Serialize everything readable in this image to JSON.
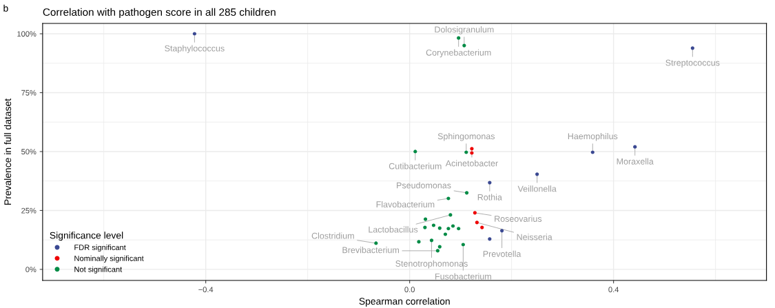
{
  "chart_data": {
    "type": "scatter",
    "title": "Correlation with pathogen score in all 285 children",
    "xlabel": "Spearman correlation",
    "ylabel": "Prevalence in full dataset",
    "legend_title": "Significance level",
    "legend": "bottom left",
    "grid": true,
    "marker": "circle",
    "xlim": [
      -0.72,
      0.7
    ],
    "ylim": [
      -4.7,
      104.4
    ],
    "xticks": [
      {
        "value": -0.4,
        "label": "−0.4"
      },
      {
        "value": 0.0,
        "label": "0.0"
      },
      {
        "value": 0.4,
        "label": "0.4"
      }
    ],
    "yticks": [
      {
        "value": 0,
        "label": "0%"
      },
      {
        "value": 25,
        "label": "25%"
      },
      {
        "value": 50,
        "label": "50%"
      },
      {
        "value": 75,
        "label": "75%"
      },
      {
        "value": 100,
        "label": "100%"
      }
    ],
    "series": [
      {
        "name": "FDR significant",
        "color": "#3b4992",
        "x": [
          -0.422,
          0.555,
          0.442,
          0.359,
          0.25,
          0.157,
          0.181,
          0.157
        ],
        "values": [
          100,
          93.9,
          52.0,
          49.7,
          40.4,
          36.8,
          16.4,
          12.9
        ]
      },
      {
        "name": "Nominally significant",
        "color": "#ee0000",
        "x": [
          0.122,
          0.122,
          0.128,
          0.132,
          0.142
        ],
        "values": [
          51.2,
          49.4,
          24.0,
          19.9,
          17.8
        ]
      },
      {
        "name": "Not significant",
        "color": "#008b45",
        "x": [
          0.096,
          0.107,
          0.011,
          0.111,
          0.112,
          0.076,
          0.08,
          0.031,
          0.047,
          0.085,
          0.03,
          0.059,
          0.076,
          0.096,
          0.07,
          0.043,
          0.018,
          0.105,
          0.059,
          0.055,
          -0.066
        ],
        "values": [
          98.2,
          95.0,
          50.0,
          49.7,
          32.5,
          30.1,
          23.1,
          21.3,
          18.7,
          18.4,
          17.8,
          17.5,
          17.3,
          17.3,
          14.9,
          12.3,
          11.7,
          10.5,
          9.6,
          7.9,
          11.1
        ]
      }
    ],
    "annotations": [
      "b",
      {
        "text": "Staphylococcus",
        "x": -0.422,
        "y": 100
      },
      {
        "text": "Corynebacterium",
        "x": 0.096,
        "y": 98.2
      },
      {
        "text": "Dolosigranulum",
        "x": 0.107,
        "y": 95.0
      },
      {
        "text": "Streptococcus",
        "x": 0.555,
        "y": 93.9
      },
      {
        "text": "Moraxella",
        "x": 0.442,
        "y": 52.0
      },
      {
        "text": "Haemophilus",
        "x": 0.359,
        "y": 49.7
      },
      {
        "text": "Veillonella",
        "x": 0.25,
        "y": 40.4
      },
      {
        "text": "Rothia",
        "x": 0.157,
        "y": 36.8
      },
      {
        "text": "Cutibacterium",
        "x": 0.011,
        "y": 50.0
      },
      {
        "text": "Acinetobacter",
        "x": 0.122,
        "y": 51.2
      },
      {
        "text": "Sphingomonas",
        "x": 0.111,
        "y": 49.7
      },
      {
        "text": "Pseudomonas",
        "x": 0.112,
        "y": 32.5
      },
      {
        "text": "Flavobacterium",
        "x": 0.076,
        "y": 30.1
      },
      {
        "text": "Roseovarius",
        "x": 0.128,
        "y": 24.0
      },
      {
        "text": "Lactobacillus",
        "x": 0.08,
        "y": 23.1
      },
      {
        "text": "Neisseria",
        "x": 0.132,
        "y": 19.9
      },
      {
        "text": "Prevotella",
        "x": 0.181,
        "y": 16.4
      },
      {
        "text": "Stenotrophomonas",
        "x": 0.043,
        "y": 12.3
      },
      {
        "text": "Fusobacterium",
        "x": 0.105,
        "y": 10.5
      },
      {
        "text": "Brevibacterium",
        "x": 0.055,
        "y": 7.9
      },
      {
        "text": "Clostridium",
        "x": -0.066,
        "y": 11.1
      }
    ]
  }
}
